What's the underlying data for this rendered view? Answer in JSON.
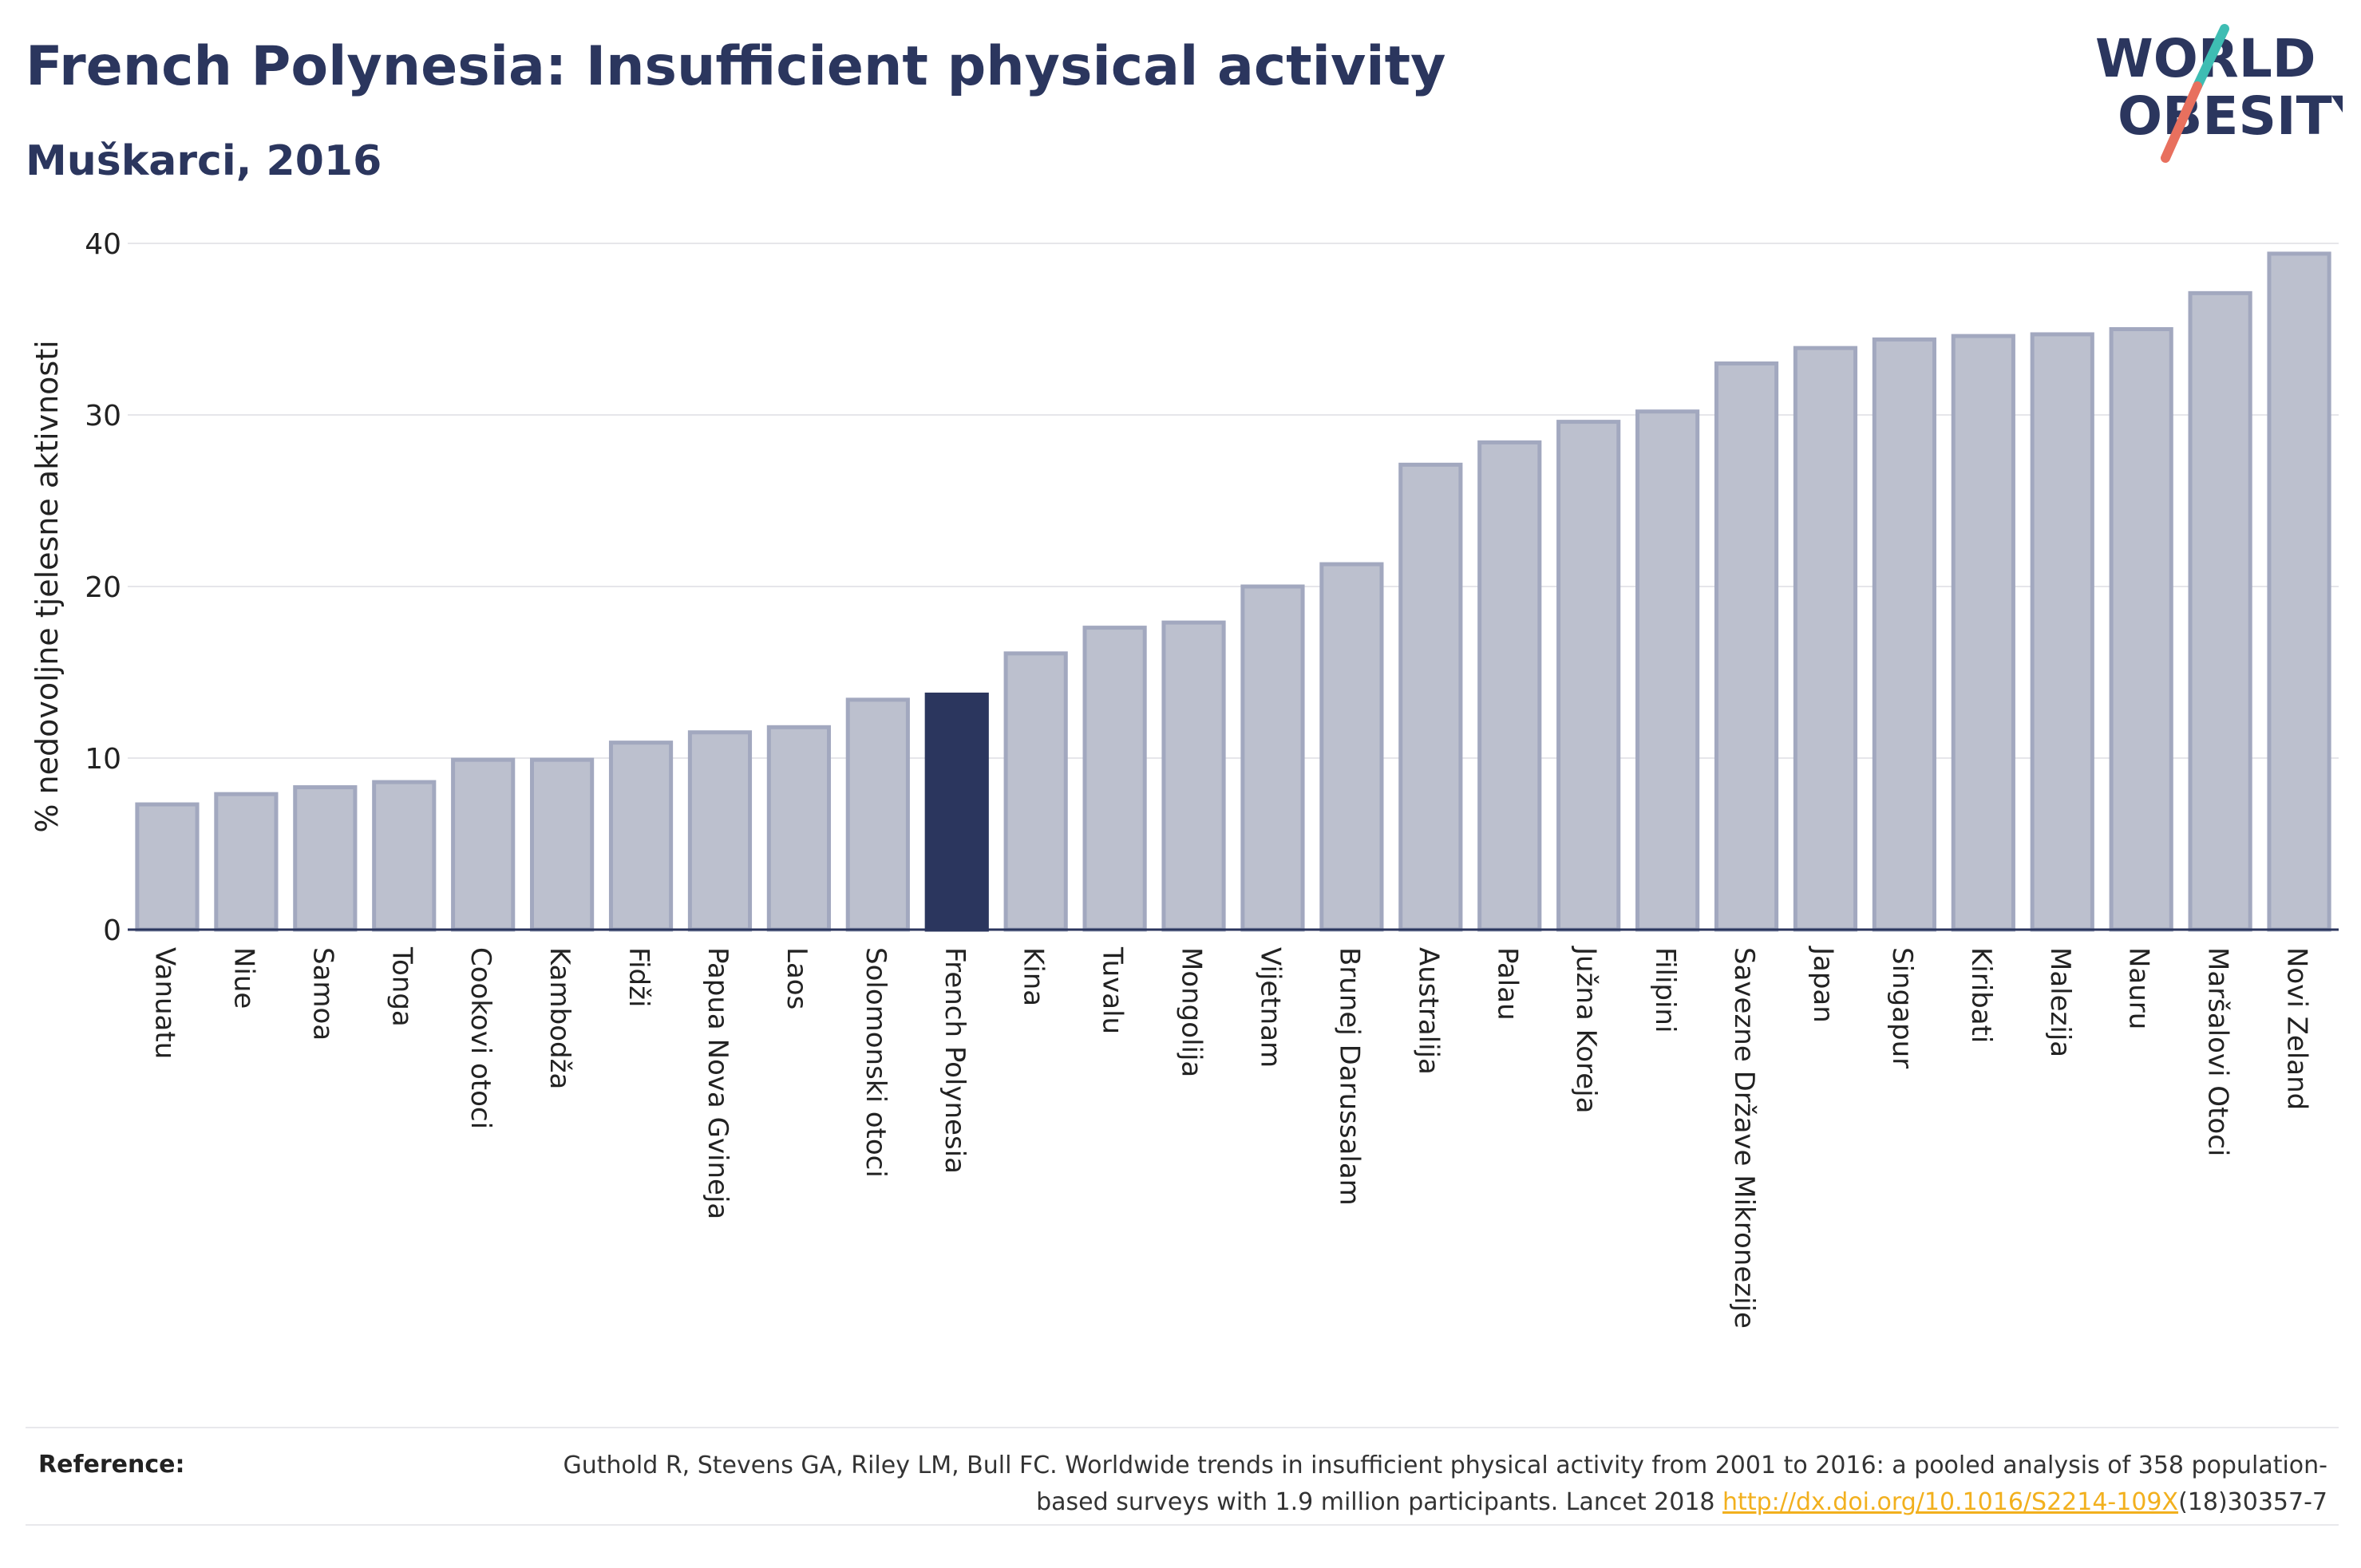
{
  "header": {
    "title": "French Polynesia: Insufficient physical activity",
    "subtitle": "Muškarci, 2016"
  },
  "logo": {
    "line1": "WORLD",
    "line2": "OBESITY",
    "icon": "world-obesity-logo"
  },
  "colors": {
    "bar": "#bcc0ce",
    "bar_border": "#a2a8bf",
    "highlight": "#2b365e",
    "grid": "#e6e6ea",
    "text": "#2b365e",
    "link": "#f2b01e"
  },
  "chart_data": {
    "type": "bar",
    "title": "French Polynesia: Insufficient physical activity",
    "subtitle": "Muškarci, 2016",
    "ylabel": "% nedovoljne tjelesne aktivnosti",
    "xlabel": "",
    "ylim": [
      0,
      40
    ],
    "yticks": [
      0,
      10,
      20,
      30,
      40
    ],
    "grid": true,
    "highlight": "French Polynesia",
    "categories": [
      "Vanuatu",
      "Niue",
      "Samoa",
      "Tonga",
      "Cookovi otoci",
      "Kambodža",
      "Fidži",
      "Papua Nova Gvineja",
      "Laos",
      "Solomonski otoci",
      "French Polynesia",
      "Kina",
      "Tuvalu",
      "Mongolija",
      "Vijetnam",
      "Brunej Darussalam",
      "Australija",
      "Palau",
      "Južna Koreja",
      "Filipini",
      "Savezne Države Mikronezije",
      "Japan",
      "Singapur",
      "Kiribati",
      "Malezija",
      "Nauru",
      "Maršalovi Otoci",
      "Novi Zeland"
    ],
    "values": [
      7.3,
      7.9,
      8.3,
      8.6,
      9.9,
      9.9,
      10.9,
      11.5,
      11.8,
      13.4,
      13.7,
      16.1,
      17.6,
      17.9,
      20.0,
      21.3,
      27.1,
      28.4,
      29.6,
      30.2,
      33.0,
      33.9,
      34.4,
      34.6,
      34.7,
      35.0,
      37.1,
      39.4
    ]
  },
  "reference": {
    "label": "Reference:",
    "text_before": "Guthold R, Stevens GA, Riley LM, Bull FC. Worldwide trends in insufficient physical activity from 2001 to 2016: a pooled analysis of 358 population-based surveys with 1.9 million participants. Lancet 2018 ",
    "link": "http://dx.doi.org/10.1016/S2214-109X",
    "text_after": "(18)30357-7"
  }
}
